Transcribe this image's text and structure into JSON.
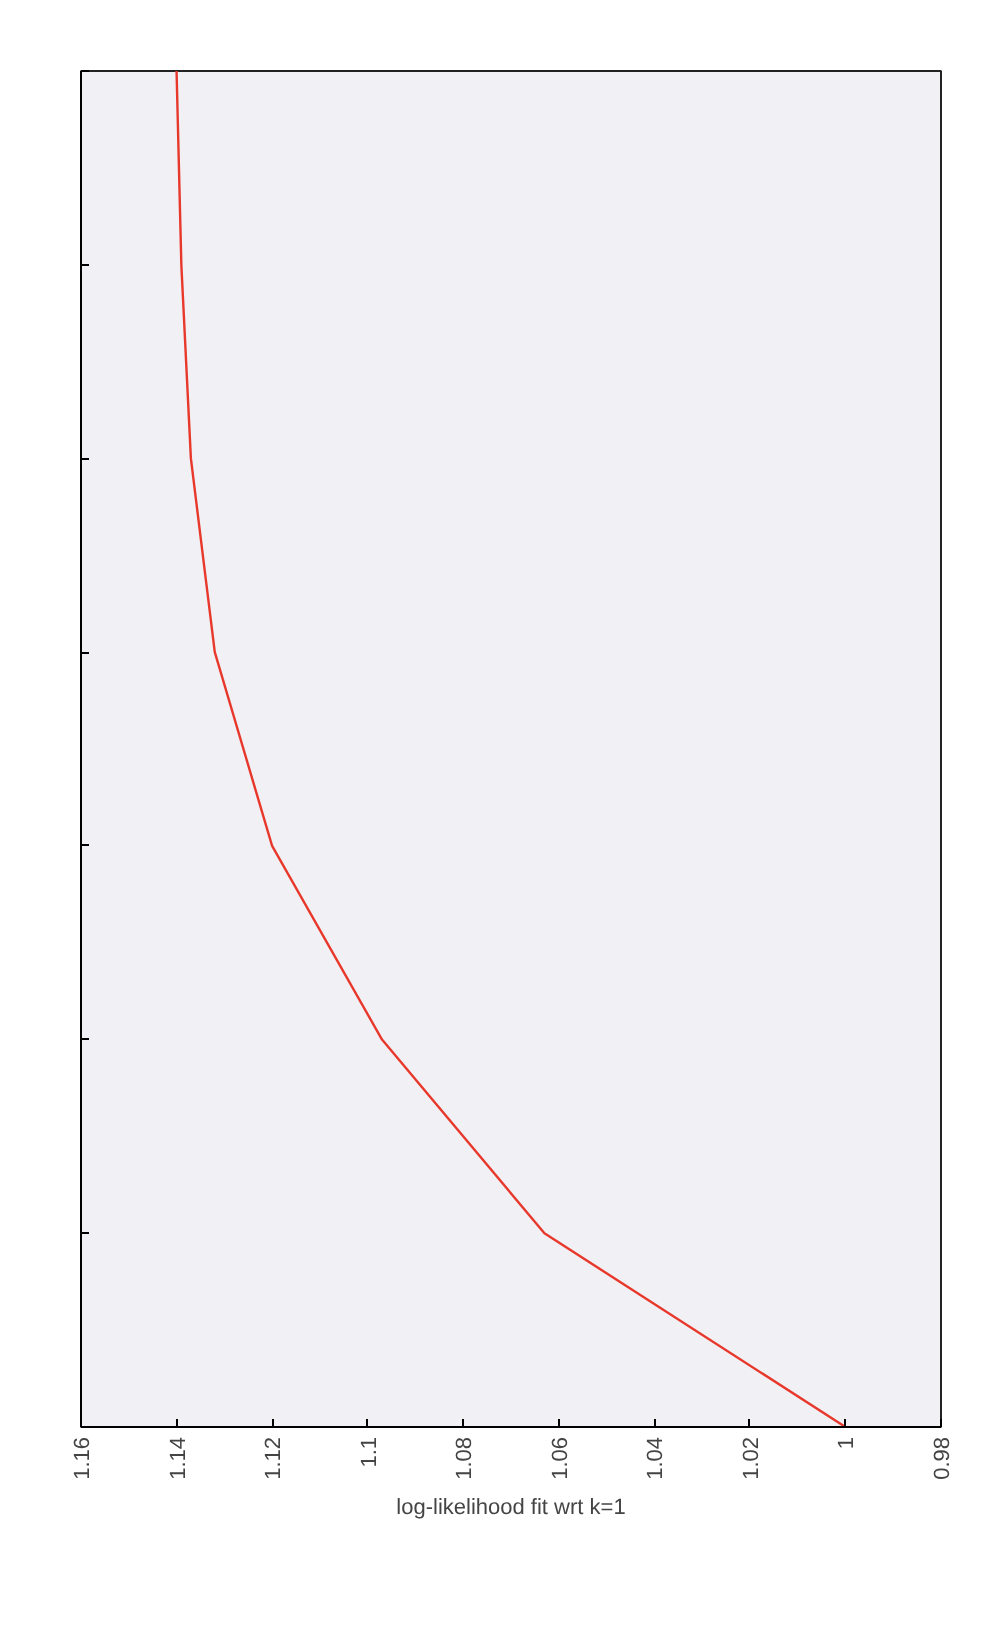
{
  "chart_data": {
    "type": "line",
    "orientation": "horizontal",
    "xlabel": "log-likelihood fit wrt k=1",
    "categories": [
      null,
      null,
      null,
      null,
      null,
      null,
      null,
      null
    ],
    "series": [
      {
        "color": "#e8382c",
        "values": [
          1.14,
          1.139,
          1.137,
          1.132,
          1.12,
          1.097,
          1.063,
          1.0
        ]
      }
    ],
    "xlim": [
      1.16,
      0.98
    ],
    "xticks": [
      1.16,
      1.14,
      1.12,
      1.1,
      1.08,
      1.06,
      1.04,
      1.02,
      1,
      0.98
    ],
    "grid": false
  }
}
